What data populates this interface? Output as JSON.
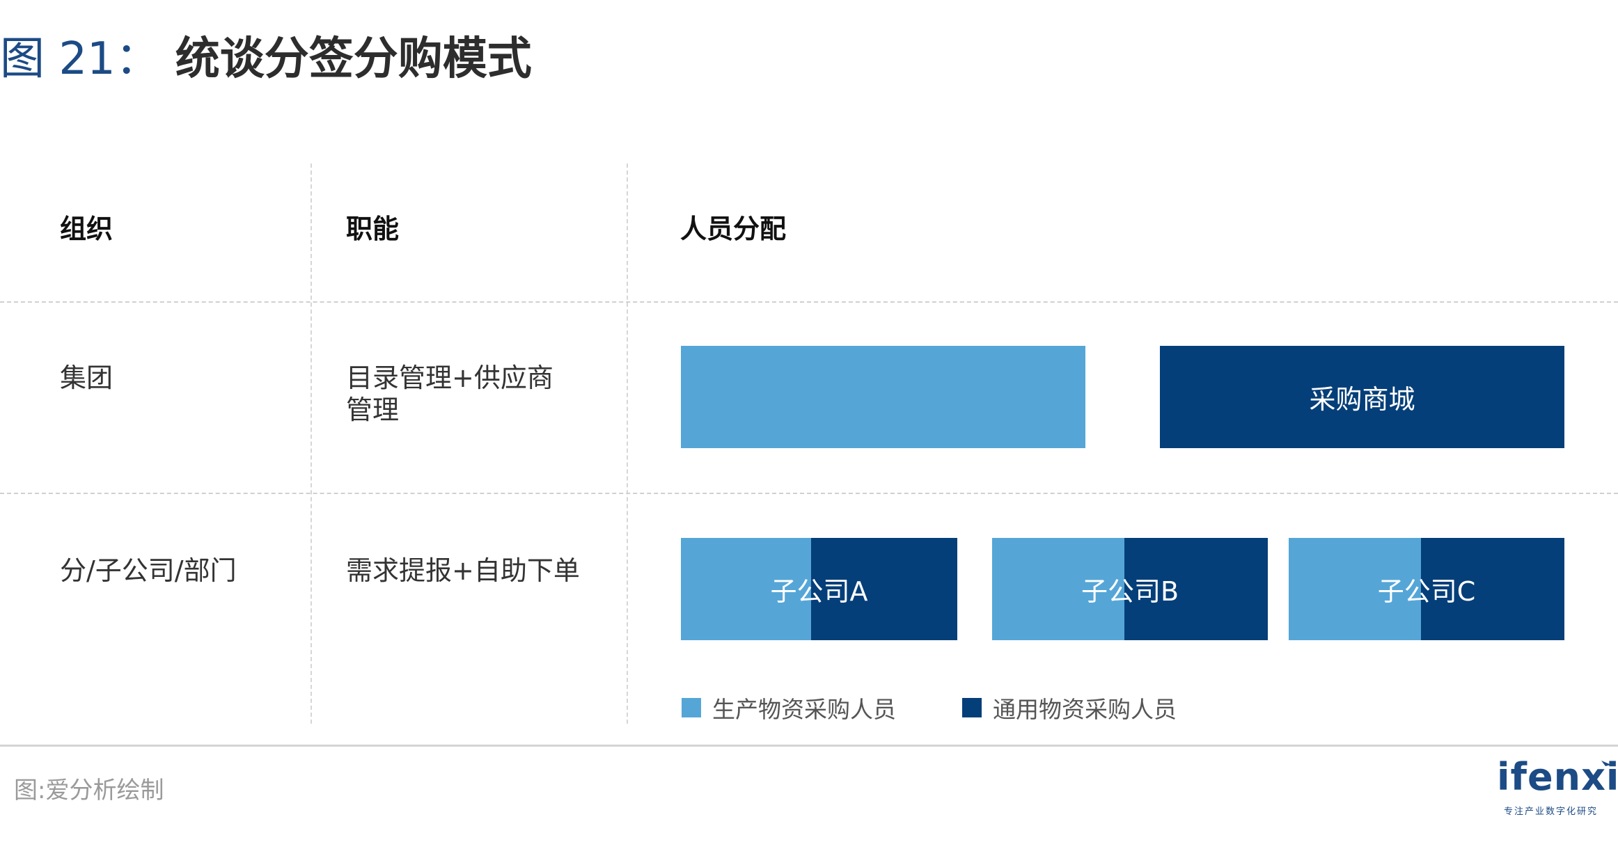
{
  "title": {
    "number": "图 21：",
    "text": "统谈分签分购模式"
  },
  "columns": {
    "org": "组织",
    "function": "职能",
    "staffing": "人员分配"
  },
  "rows": [
    {
      "org": "集团",
      "function_line1": "目录管理+供应商",
      "function_line2": "管理",
      "bars": [
        {
          "label": "",
          "type": "production"
        },
        {
          "label": "采购商城",
          "type": "general"
        }
      ]
    },
    {
      "org": "分/子公司/部门",
      "function_line1": "需求提报+自助下单",
      "function_line2": "",
      "bars": [
        {
          "label": "子公司A",
          "production_share": 0.47,
          "general_share": 0.53
        },
        {
          "label": "子公司B",
          "production_share": 0.48,
          "general_share": 0.52
        },
        {
          "label": "子公司C",
          "production_share": 0.48,
          "general_share": 0.52
        }
      ]
    }
  ],
  "legend": {
    "production": "生产物资采购人员",
    "general": "通用物资采购人员"
  },
  "colors": {
    "production": "#55a6d7",
    "general": "#053f79",
    "title_accent": "#1c4b85"
  },
  "footer": {
    "source": "图:爱分析绘制",
    "logo_word": "ifenxi",
    "logo_tagline": "专注产业数字化研究"
  }
}
